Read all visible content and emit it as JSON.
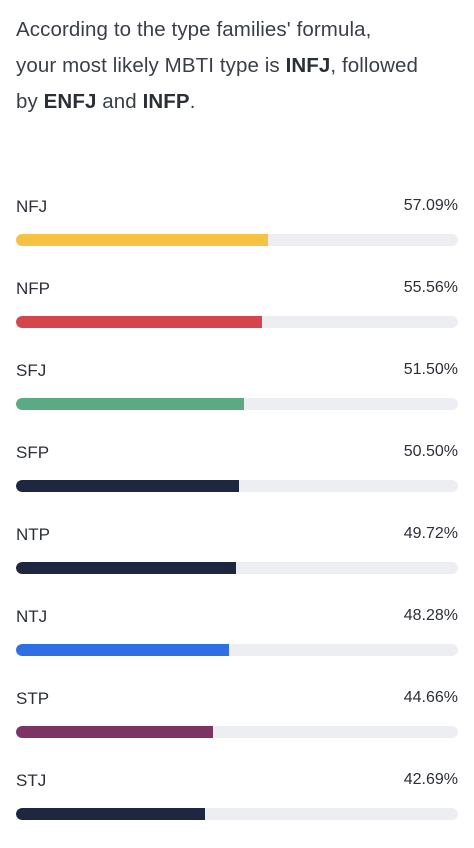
{
  "intro": {
    "line1": "According to the type families' formula,",
    "line2_pre": "your most likely MBTI type is ",
    "top_type": "INFJ",
    "line2_post": ", followed",
    "line3_pre": "by ",
    "second_type": "ENFJ",
    "line3_mid": " and ",
    "third_type": "INFP",
    "line3_post": "."
  },
  "families": [
    {
      "label": "NFJ",
      "value_text": "57.09%",
      "percent": 57.09,
      "color": "#f5c242"
    },
    {
      "label": "NFP",
      "value_text": "55.56%",
      "percent": 55.56,
      "color": "#d4464c"
    },
    {
      "label": "SFJ",
      "value_text": "51.50%",
      "percent": 51.5,
      "color": "#5aab84"
    },
    {
      "label": "SFP",
      "value_text": "50.50%",
      "percent": 50.5,
      "color": "#1f2640"
    },
    {
      "label": "NTP",
      "value_text": "49.72%",
      "percent": 49.72,
      "color": "#1f2640"
    },
    {
      "label": "NTJ",
      "value_text": "48.28%",
      "percent": 48.28,
      "color": "#2f6fe4"
    },
    {
      "label": "STP",
      "value_text": "44.66%",
      "percent": 44.66,
      "color": "#7b3464"
    },
    {
      "label": "STJ",
      "value_text": "42.69%",
      "percent": 42.69,
      "color": "#1f2640"
    }
  ]
}
